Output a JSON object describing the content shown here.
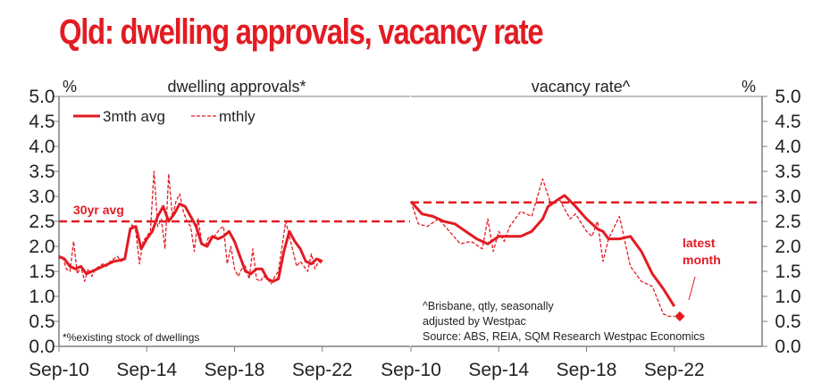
{
  "title": "Qld: dwelling approvals, vacancy rate",
  "colors": {
    "series": "#e31b23",
    "axis": "#7f7f7f",
    "text": "#222222"
  },
  "chart_data": [
    {
      "type": "line",
      "title": "dwelling approvals*",
      "ylabel": "%",
      "ylim": [
        0,
        5
      ],
      "yticks": [
        "0.0",
        "0.5",
        "1.0",
        "1.5",
        "2.0",
        "2.5",
        "3.0",
        "3.5",
        "4.0",
        "4.5",
        "5.0"
      ],
      "xticks": [
        "Sep-10",
        "Sep-14",
        "Sep-18",
        "Sep-22"
      ],
      "xlim": [
        "2010-09",
        "2026-09"
      ],
      "legend": {
        "placement": "top-left",
        "entries": [
          "3mth avg",
          "mthly"
        ]
      },
      "footnote": "*%existing stock of dwellings",
      "reference_line": {
        "label": "30yr avg",
        "value": 2.5
      },
      "series": [
        {
          "name": "3mth avg",
          "style": "solid",
          "x": [
            "2010-09",
            "2010-12",
            "2011-03",
            "2011-06",
            "2011-09",
            "2011-12",
            "2012-03",
            "2012-06",
            "2012-09",
            "2012-12",
            "2013-03",
            "2013-06",
            "2013-09",
            "2013-12",
            "2014-03",
            "2014-06",
            "2014-09",
            "2014-12",
            "2015-03",
            "2015-06",
            "2015-09",
            "2015-12",
            "2016-03",
            "2016-06",
            "2016-09",
            "2016-12",
            "2017-03",
            "2017-06",
            "2017-09",
            "2017-12",
            "2018-03",
            "2018-06",
            "2018-09",
            "2018-12",
            "2019-03",
            "2019-06",
            "2019-09",
            "2019-12",
            "2020-03",
            "2020-06",
            "2020-09",
            "2020-12",
            "2021-03",
            "2021-06",
            "2021-09",
            "2021-12",
            "2022-03",
            "2022-06",
            "2022-09"
          ],
          "values": [
            1.8,
            1.75,
            1.6,
            1.55,
            1.6,
            1.45,
            1.5,
            1.55,
            1.6,
            1.65,
            1.7,
            1.72,
            1.75,
            2.35,
            2.4,
            1.95,
            2.15,
            2.3,
            2.6,
            2.8,
            2.5,
            2.65,
            2.85,
            2.8,
            2.6,
            2.4,
            2.05,
            2.0,
            2.2,
            2.15,
            2.2,
            2.3,
            2.1,
            1.8,
            1.5,
            1.45,
            1.55,
            1.55,
            1.35,
            1.3,
            1.35,
            1.9,
            2.3,
            2.1,
            1.95,
            1.7,
            1.65,
            1.75,
            1.7
          ]
        },
        {
          "name": "mthly",
          "style": "dashed",
          "x": [
            "2010-09",
            "2010-11",
            "2011-01",
            "2011-03",
            "2011-05",
            "2011-07",
            "2011-09",
            "2011-11",
            "2012-01",
            "2012-03",
            "2012-05",
            "2012-07",
            "2012-09",
            "2012-11",
            "2013-01",
            "2013-03",
            "2013-05",
            "2013-07",
            "2013-09",
            "2013-11",
            "2014-01",
            "2014-03",
            "2014-05",
            "2014-07",
            "2014-09",
            "2014-11",
            "2015-01",
            "2015-03",
            "2015-05",
            "2015-07",
            "2015-09",
            "2015-11",
            "2016-01",
            "2016-03",
            "2016-05",
            "2016-07",
            "2016-09",
            "2016-11",
            "2017-01",
            "2017-03",
            "2017-05",
            "2017-07",
            "2017-09",
            "2017-11",
            "2018-01",
            "2018-03",
            "2018-05",
            "2018-07",
            "2018-09",
            "2018-11",
            "2019-01",
            "2019-03",
            "2019-05",
            "2019-07",
            "2019-09",
            "2019-11",
            "2020-01",
            "2020-03",
            "2020-05",
            "2020-07",
            "2020-09",
            "2020-11",
            "2021-01",
            "2021-03",
            "2021-05",
            "2021-07",
            "2021-09",
            "2021-11",
            "2022-01",
            "2022-03",
            "2022-05",
            "2022-07",
            "2022-09"
          ],
          "values": [
            1.75,
            1.8,
            1.55,
            1.5,
            2.1,
            1.45,
            1.6,
            1.3,
            1.55,
            1.4,
            1.55,
            1.6,
            1.65,
            1.6,
            1.7,
            1.75,
            1.8,
            1.7,
            1.75,
            2.1,
            2.45,
            2.3,
            1.65,
            2.1,
            2.2,
            2.3,
            3.5,
            2.4,
            2.55,
            1.95,
            3.45,
            2.6,
            2.9,
            3.05,
            2.7,
            2.5,
            2.4,
            1.9,
            2.55,
            2.1,
            2.0,
            2.2,
            2.15,
            2.25,
            2.35,
            2.4,
            1.65,
            2.0,
            1.55,
            1.4,
            1.55,
            1.6,
            1.35,
            1.95,
            1.35,
            1.3,
            1.4,
            1.35,
            1.25,
            1.4,
            1.5,
            2.0,
            2.5,
            2.2,
            1.9,
            1.6,
            1.7,
            1.6,
            1.5,
            1.85,
            1.55,
            1.7,
            1.65
          ]
        }
      ]
    },
    {
      "type": "line",
      "title": "vacancy rate^",
      "ylabel": "%",
      "ylim": [
        0,
        5
      ],
      "yticks": [
        "0.0",
        "0.5",
        "1.0",
        "1.5",
        "2.0",
        "2.5",
        "3.0",
        "3.5",
        "4.0",
        "4.5",
        "5.0"
      ],
      "xticks": [
        "Sep-10",
        "Sep-14",
        "Sep-18",
        "Sep-22"
      ],
      "xlim": [
        "2010-09",
        "2026-09"
      ],
      "footnote": [
        "^Brisbane, qtly, seasonally",
        "adjusted by Westpac",
        "Source: ABS, REIA, SQM Research Westpac Economics"
      ],
      "reference_line": {
        "value": 2.88
      },
      "annotation": {
        "label": [
          "latest",
          "month"
        ],
        "x": "2022-12",
        "value": 0.6
      },
      "series": [
        {
          "name": "3mth avg",
          "style": "solid",
          "x": [
            "2010-09",
            "2011-03",
            "2011-09",
            "2012-03",
            "2012-09",
            "2013-03",
            "2013-09",
            "2014-03",
            "2014-09",
            "2015-03",
            "2015-09",
            "2016-03",
            "2016-09",
            "2016-12",
            "2017-06",
            "2017-09",
            "2018-03",
            "2018-09",
            "2019-03",
            "2019-06",
            "2019-09",
            "2020-03",
            "2020-09",
            "2021-03",
            "2021-09",
            "2022-03",
            "2022-09"
          ],
          "values": [
            2.9,
            2.65,
            2.6,
            2.5,
            2.45,
            2.3,
            2.15,
            2.05,
            2.2,
            2.2,
            2.2,
            2.3,
            2.55,
            2.8,
            2.95,
            3.02,
            2.8,
            2.55,
            2.35,
            2.3,
            2.15,
            2.15,
            2.2,
            1.9,
            1.45,
            1.15,
            0.8
          ]
        },
        {
          "name": "mthly",
          "style": "dashed",
          "x": [
            "2010-09",
            "2011-01",
            "2011-06",
            "2011-12",
            "2012-06",
            "2012-12",
            "2013-06",
            "2013-12",
            "2014-03",
            "2014-06",
            "2014-09",
            "2014-12",
            "2015-03",
            "2015-09",
            "2016-03",
            "2016-09",
            "2017-01",
            "2017-03",
            "2017-06",
            "2017-12",
            "2018-03",
            "2018-09",
            "2018-12",
            "2019-03",
            "2019-06",
            "2019-09",
            "2020-03",
            "2020-06",
            "2020-09",
            "2021-03",
            "2021-09",
            "2022-03",
            "2022-06",
            "2022-09"
          ],
          "values": [
            2.9,
            2.45,
            2.4,
            2.55,
            2.3,
            2.05,
            2.1,
            1.95,
            2.55,
            1.9,
            2.3,
            2.1,
            2.4,
            2.7,
            2.6,
            3.35,
            2.9,
            2.85,
            2.95,
            2.55,
            2.65,
            2.3,
            2.2,
            2.5,
            1.7,
            2.15,
            2.6,
            2.1,
            1.6,
            1.3,
            1.2,
            0.65,
            0.6,
            0.6
          ]
        }
      ]
    }
  ]
}
